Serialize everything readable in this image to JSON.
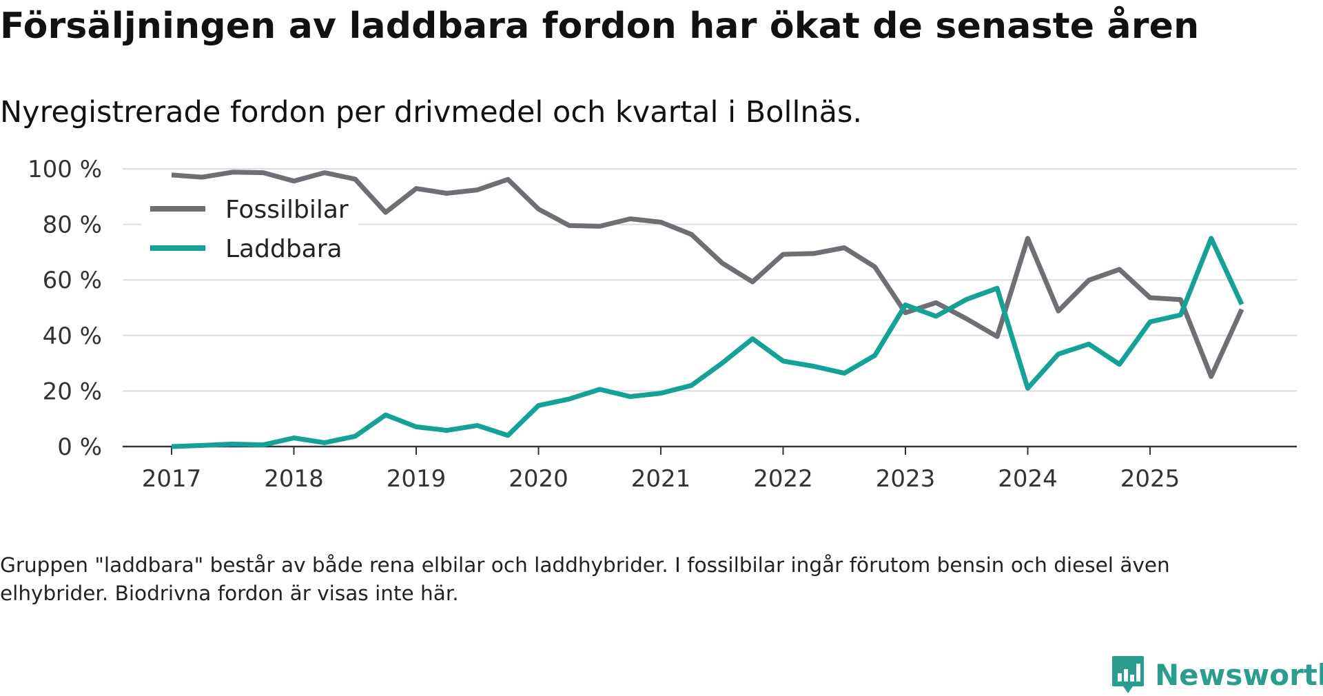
{
  "title": "Försäljningen av laddbara fordon har ökat de senaste åren",
  "subtitle": "Nyregistrerade fordon per drivmedel och kvartal i Bollnäs.",
  "note": "Gruppen \"laddbara\" består av både rena elbilar och laddhybrider. I fossilbilar ingår förutom bensin och diesel även elhybrider. Biodrivna fordon är visas inte här.",
  "logo": {
    "text": "Newsworthy",
    "color": "#2a9d8f"
  },
  "chart_data": {
    "type": "line",
    "title": "Försäljningen av laddbara fordon har ökat de senaste åren",
    "subtitle": "Nyregistrerade fordon per drivmedel och kvartal i Bollnäs.",
    "xlabel": "",
    "ylabel": "",
    "ylim": [
      0,
      100
    ],
    "y_ticks": [
      0,
      20,
      40,
      60,
      80,
      100
    ],
    "y_tick_labels": [
      "0 %",
      "20 %",
      "40 %",
      "60 %",
      "80 %",
      "100 %"
    ],
    "x_ticks": [
      2017,
      2018,
      2019,
      2020,
      2021,
      2022,
      2023,
      2024,
      2025
    ],
    "x_tick_labels": [
      "2017",
      "2018",
      "2019",
      "2020",
      "2021",
      "2022",
      "2023",
      "2024",
      "2025"
    ],
    "xlim": [
      2016.6,
      2026.2
    ],
    "grid": true,
    "legend_position": "top-left",
    "x": [
      2017,
      2017.25,
      2017.5,
      2017.75,
      2018,
      2018.25,
      2018.5,
      2018.75,
      2019,
      2019.25,
      2019.5,
      2019.75,
      2020,
      2020.25,
      2020.5,
      2020.75,
      2021,
      2021.25,
      2021.5,
      2021.75,
      2022,
      2022.25,
      2022.5,
      2022.75,
      2023,
      2023.25,
      2023.5,
      2023.75,
      2024,
      2024.25,
      2024.5,
      2024.75,
      2025,
      2025.25,
      2025.5,
      2025.75
    ],
    "series": [
      {
        "name": "Fossilbilar",
        "color": "#6e6e75",
        "values": [
          97.8,
          97.0,
          98.8,
          98.6,
          95.6,
          98.6,
          96.3,
          84.3,
          92.9,
          91.2,
          92.4,
          96.2,
          85.5,
          79.6,
          79.3,
          82.0,
          80.8,
          76.4,
          66.1,
          59.3,
          69.2,
          69.5,
          71.6,
          64.7,
          48.2,
          51.8,
          46.0,
          39.6,
          75.0,
          48.8,
          59.9,
          63.8,
          53.6,
          52.9,
          25.2,
          49.4
        ]
      },
      {
        "name": "Laddbara",
        "color": "#15a196",
        "values": [
          0.0,
          0.4,
          0.9,
          0.6,
          3.1,
          1.4,
          3.7,
          11.4,
          7.1,
          5.8,
          7.6,
          4.0,
          14.8,
          17.1,
          20.6,
          18.0,
          19.2,
          22.0,
          30.0,
          38.8,
          30.8,
          28.9,
          26.4,
          32.8,
          51.0,
          46.9,
          53.0,
          57.0,
          21.0,
          33.3,
          36.9,
          29.6,
          44.9,
          47.4,
          75.0,
          51.2
        ]
      }
    ]
  }
}
